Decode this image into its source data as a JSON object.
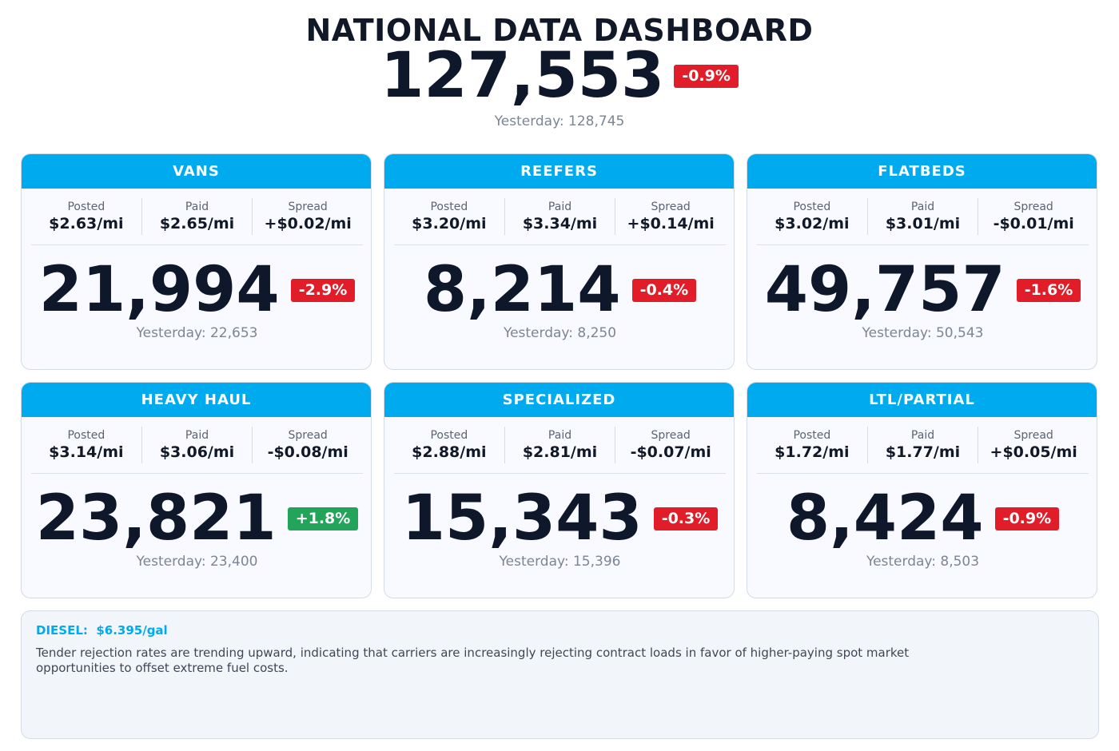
{
  "header": {
    "title": "NATIONAL DATA DASHBOARD",
    "total": "127,553",
    "change": "-0.9%",
    "yesterday": "Yesterday: 128,745"
  },
  "labels": {
    "posted": "Posted",
    "paid": "Paid",
    "spread": "Spread"
  },
  "cards": [
    {
      "name": "VANS",
      "posted": "$2.63/mi",
      "paid": "$2.65/mi",
      "spread": "+$0.02/mi",
      "count": "21,994",
      "change": "-2.9%",
      "direction": "down",
      "yesterday": "Yesterday: 22,653"
    },
    {
      "name": "REEFERS",
      "posted": "$3.20/mi",
      "paid": "$3.34/mi",
      "spread": "+$0.14/mi",
      "count": "8,214",
      "change": "-0.4%",
      "direction": "down",
      "yesterday": "Yesterday: 8,250"
    },
    {
      "name": "FLATBEDS",
      "posted": "$3.02/mi",
      "paid": "$3.01/mi",
      "spread": "-$0.01/mi",
      "count": "49,757",
      "change": "-1.6%",
      "direction": "down",
      "yesterday": "Yesterday: 50,543"
    },
    {
      "name": "HEAVY HAUL",
      "posted": "$3.14/mi",
      "paid": "$3.06/mi",
      "spread": "-$0.08/mi",
      "count": "23,821",
      "change": "+1.8%",
      "direction": "up",
      "yesterday": "Yesterday: 23,400"
    },
    {
      "name": "SPECIALIZED",
      "posted": "$2.88/mi",
      "paid": "$2.81/mi",
      "spread": "-$0.07/mi",
      "count": "15,343",
      "change": "-0.3%",
      "direction": "down",
      "yesterday": "Yesterday: 15,396"
    },
    {
      "name": "LTL/PARTIAL",
      "posted": "$1.72/mi",
      "paid": "$1.77/mi",
      "spread": "+$0.05/mi",
      "count": "8,424",
      "change": "-0.9%",
      "direction": "down",
      "yesterday": "Yesterday: 8,503"
    }
  ],
  "footer": {
    "diesel": "DIESEL:  $6.395/gal",
    "note": "Tender rejection rates are trending upward, indicating that carriers are increasingly rejecting contract loads in favor of higher-paying spot market opportunities to offset extreme fuel costs."
  },
  "colors": {
    "accent": "#00aaee",
    "down": "#e11d2a",
    "up": "#22a55a",
    "text": "#0f172a",
    "muted": "#7c8593"
  }
}
